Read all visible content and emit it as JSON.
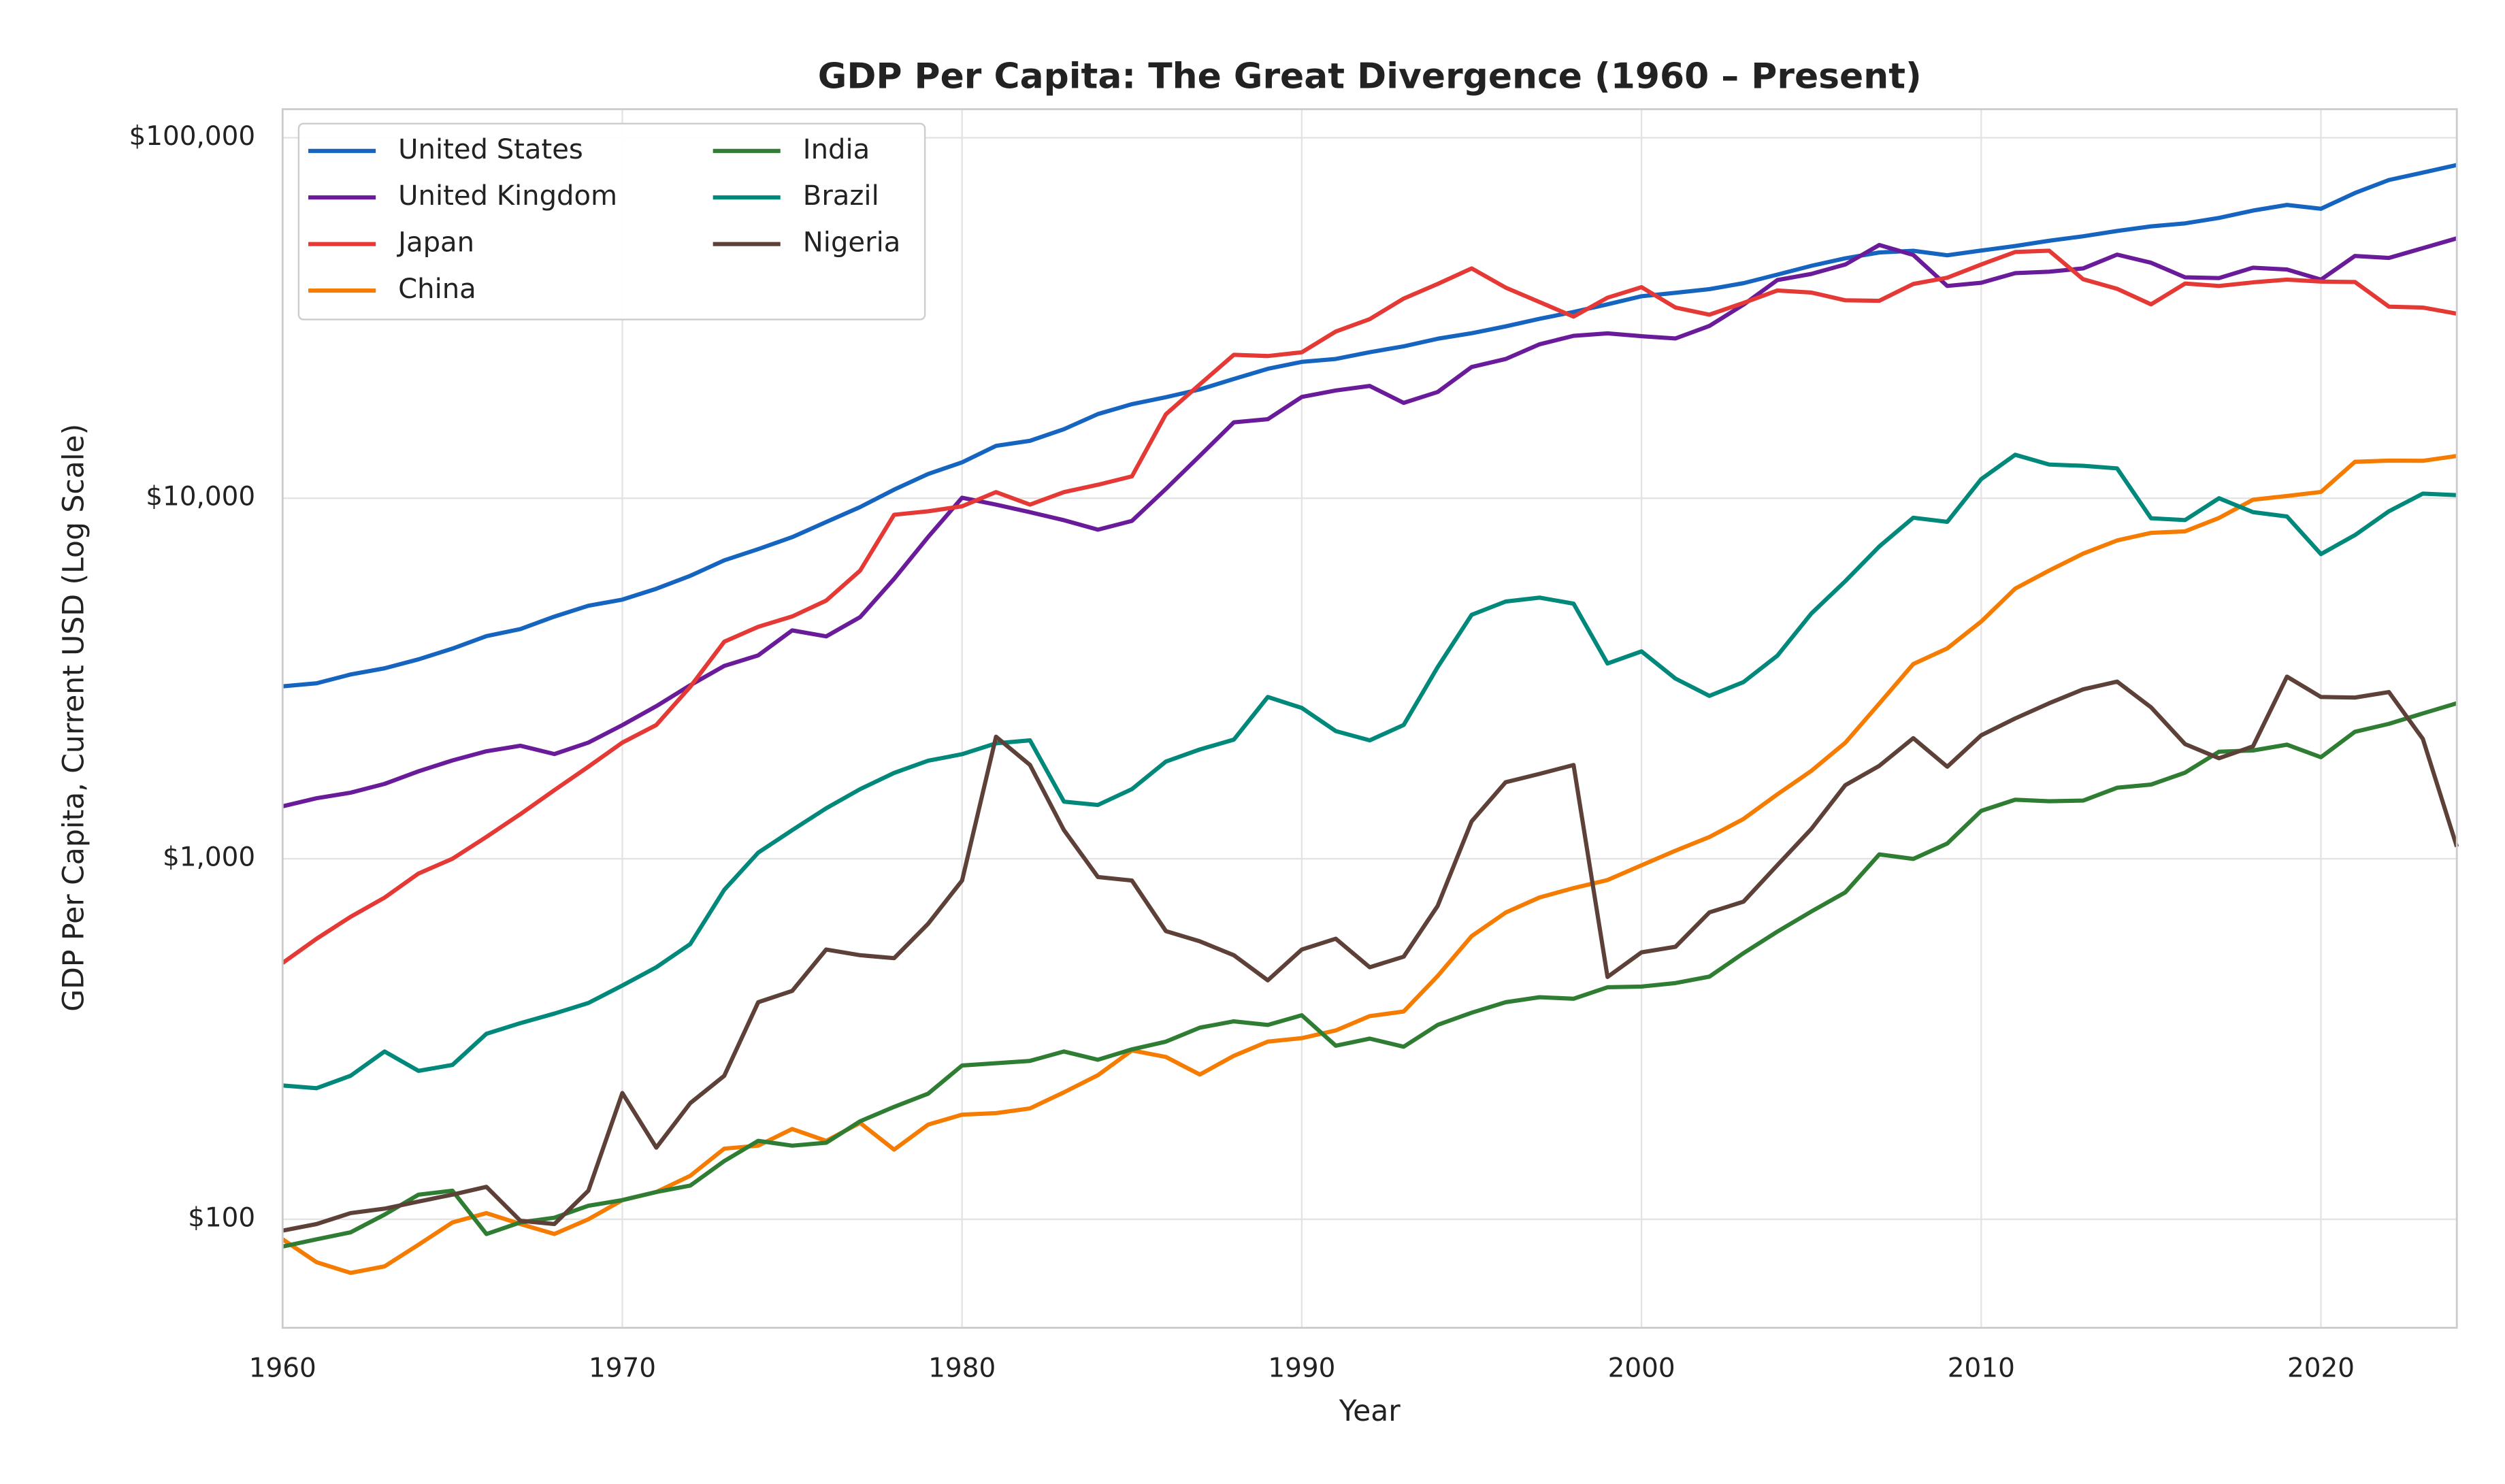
{
  "chart_data": {
    "type": "line",
    "title": "GDP Per Capita: The Great Divergence (1960 – Present)",
    "x_label": "Year",
    "y_label": "GDP Per Capita, Current USD (Log Scale)",
    "log_scale": true,
    "grid": true,
    "legend_position": "upper left",
    "xlim": [
      1960,
      2024
    ],
    "xticks": [
      1960,
      1970,
      1980,
      1990,
      2000,
      2010,
      2020
    ],
    "ylim": [
      50,
      120000
    ],
    "yticks": [
      {
        "value": 100,
        "label": "$100"
      },
      {
        "value": 1000,
        "label": "$1,000"
      },
      {
        "value": 10000,
        "label": "$10,000"
      },
      {
        "value": 100000,
        "label": "$100,000"
      }
    ],
    "x": [
      1960,
      1961,
      1962,
      1963,
      1964,
      1965,
      1966,
      1967,
      1968,
      1969,
      1970,
      1971,
      1972,
      1973,
      1974,
      1975,
      1976,
      1977,
      1978,
      1979,
      1980,
      1981,
      1982,
      1983,
      1984,
      1985,
      1986,
      1987,
      1988,
      1989,
      1990,
      1991,
      1992,
      1993,
      1994,
      1995,
      1996,
      1997,
      1998,
      1999,
      2000,
      2001,
      2002,
      2003,
      2004,
      2005,
      2006,
      2007,
      2008,
      2009,
      2010,
      2011,
      2012,
      2013,
      2014,
      2015,
      2016,
      2017,
      2018,
      2019,
      2020,
      2021,
      2022,
      2023,
      2024
    ],
    "series": [
      {
        "name": "United States",
        "color": "#1565c0",
        "values": [
          3007,
          3067,
          3244,
          3375,
          3574,
          3828,
          4146,
          4336,
          4696,
          5032,
          5234,
          5609,
          6094,
          6726,
          7226,
          7801,
          8592,
          9453,
          10565,
          11674,
          12575,
          13976,
          14434,
          15544,
          17121,
          18237,
          19071,
          20039,
          21417,
          22857,
          23889,
          24342,
          25419,
          26387,
          27695,
          28691,
          29968,
          31459,
          32854,
          34515,
          36330,
          37134,
          38023,
          39497,
          41725,
          44123,
          46302,
          48050,
          48570,
          47195,
          48651,
          50066,
          51784,
          53291,
          55124,
          56763,
          57867,
          59915,
          62805,
          65095,
          63528,
          70249,
          76330,
          80035,
          84000
        ]
      },
      {
        "name": "United Kingdom",
        "color": "#6a1b9a",
        "values": [
          1398,
          1472,
          1525,
          1613,
          1748,
          1874,
          1987,
          2058,
          1952,
          2100,
          2348,
          2650,
          3030,
          3426,
          3666,
          4300,
          4138,
          4681,
          5977,
          7804,
          10032,
          9599,
          9146,
          8691,
          8180,
          8652,
          10612,
          13119,
          16239,
          16568,
          19095,
          19901,
          20487,
          18389,
          19709,
          23123,
          24332,
          26734,
          28214,
          28670,
          28150,
          27744,
          30058,
          34420,
          40300,
          41900,
          44500,
          50400,
          47300,
          38800,
          39600,
          42100,
          42500,
          43400,
          47400,
          45000,
          41000,
          40800,
          43600,
          43100,
          40400,
          47000,
          46400,
          49400,
          52600
        ]
      },
      {
        "name": "Japan",
        "color": "#e53935",
        "values": [
          514,
          600,
          690,
          780,
          910,
          1000,
          1150,
          1330,
          1550,
          1800,
          2100,
          2350,
          3000,
          4000,
          4400,
          4700,
          5200,
          6300,
          9000,
          9200,
          9500,
          10400,
          9600,
          10400,
          10900,
          11500,
          17100,
          20700,
          25000,
          24800,
          25400,
          29000,
          31400,
          35800,
          39300,
          43400,
          38400,
          35000,
          31900,
          36000,
          38500,
          33800,
          32300,
          34800,
          37700,
          37200,
          35400,
          35300,
          39300,
          40900,
          44500,
          48200,
          48600,
          40500,
          38100,
          34500,
          39400,
          38800,
          39700,
          40400,
          39900,
          39800,
          34000,
          33800,
          32500
        ]
      },
      {
        "name": "China",
        "color": "#f57c00",
        "values": [
          88,
          76,
          71,
          74,
          85,
          98,
          104,
          97,
          91,
          100,
          113,
          119,
          132,
          157,
          160,
          178,
          165,
          185,
          156,
          183,
          195,
          197,
          203,
          225,
          251,
          294,
          282,
          252,
          284,
          311,
          318,
          334,
          366,
          377,
          473,
          610,
          709,
          781,
          829,
          873,
          959,
          1053,
          1149,
          1289,
          1509,
          1753,
          2099,
          2694,
          3468,
          3832,
          4550,
          5614,
          6301,
          7020,
          7636,
          8016,
          8094,
          8817,
          9905,
          10144,
          10409,
          12618,
          12720,
          12700,
          13100
        ]
      },
      {
        "name": "India",
        "color": "#2e7d32",
        "values": [
          84,
          88,
          92,
          103,
          117,
          120,
          91,
          98,
          101,
          109,
          113,
          119,
          124,
          145,
          165,
          160,
          163,
          187,
          205,
          223,
          267,
          271,
          275,
          292,
          277,
          296,
          311,
          340,
          354,
          346,
          368,
          303,
          317,
          301,
          346,
          374,
          400,
          413,
          409,
          440,
          442,
          452,
          471,
          547,
          628,
          714,
          807,
          1028,
          999,
          1102,
          1358,
          1458,
          1444,
          1450,
          1574,
          1606,
          1733,
          1981,
          1997,
          2072,
          1913,
          2250,
          2367,
          2530,
          2700
        ]
      },
      {
        "name": "Brazil",
        "color": "#00897b",
        "values": [
          235,
          231,
          250,
          292,
          258,
          268,
          327,
          350,
          372,
          398,
          445,
          500,
          580,
          820,
          1040,
          1200,
          1380,
          1560,
          1730,
          1870,
          1950,
          2090,
          2130,
          1440,
          1410,
          1560,
          1860,
          2010,
          2140,
          2810,
          2620,
          2260,
          2130,
          2350,
          3400,
          4750,
          5170,
          5300,
          5100,
          3480,
          3760,
          3160,
          2830,
          3090,
          3660,
          4790,
          5890,
          7350,
          8830,
          8600,
          11300,
          13200,
          12400,
          12300,
          12100,
          8800,
          8700,
          10000,
          9150,
          8900,
          7000,
          7900,
          9200,
          10300,
          10200
        ]
      },
      {
        "name": "Nigeria",
        "color": "#5d4037",
        "values": [
          93,
          97,
          104,
          107,
          112,
          117,
          123,
          99,
          97,
          120,
          224,
          158,
          210,
          250,
          400,
          430,
          560,
          540,
          530,
          660,
          870,
          2180,
          1820,
          1200,
          890,
          870,
          630,
          590,
          540,
          460,
          560,
          600,
          500,
          535,
          740,
          1270,
          1630,
          1720,
          1820,
          470,
          550,
          570,
          710,
          760,
          960,
          1210,
          1600,
          1810,
          2160,
          1800,
          2200,
          2450,
          2700,
          2950,
          3100,
          2630,
          2080,
          1900,
          2050,
          3200,
          2810,
          2800,
          2900,
          2150,
          1080
        ]
      }
    ]
  }
}
